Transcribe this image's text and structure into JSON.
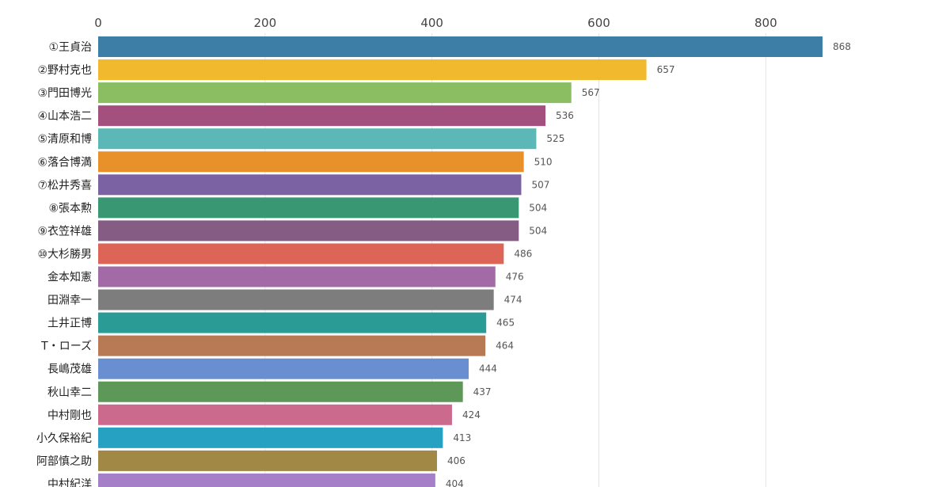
{
  "chart_data": {
    "type": "bar",
    "orientation": "horizontal",
    "title": "",
    "xlabel": "",
    "ylabel": "",
    "xlim": [
      0,
      868
    ],
    "x_ticks": [
      "0",
      "200",
      "400",
      "600",
      "800"
    ],
    "x_tick_values": [
      0,
      200,
      400,
      600,
      800
    ],
    "grid": true,
    "categories": [
      "①王貞治",
      "②野村克也",
      "③門田博光",
      "④山本浩二",
      "⑤清原和博",
      "⑥落合博満",
      "⑦松井秀喜",
      "⑧張本勲",
      "⑨衣笠祥雄",
      "⑩大杉勝男",
      "金本知憲",
      "田淵幸一",
      "土井正博",
      "T・ローズ",
      "長嶋茂雄",
      "秋山幸二",
      "中村剛也",
      "小久保裕紀",
      "阿部慎之助",
      "中村紀洋"
    ],
    "values": [
      868,
      657,
      567,
      536,
      525,
      510,
      507,
      504,
      504,
      486,
      476,
      474,
      465,
      464,
      444,
      437,
      424,
      413,
      406,
      404
    ],
    "value_labels": [
      "868",
      "657",
      "567",
      "536",
      "525",
      "510",
      "507",
      "504",
      "504",
      "486",
      "476",
      "474",
      "465",
      "464",
      "444",
      "437",
      "424",
      "413",
      "406",
      "404"
    ],
    "colors": [
      "#3d7ea6",
      "#f0b92e",
      "#8bbd63",
      "#a4507e",
      "#5bb8b6",
      "#e8902a",
      "#7a62a3",
      "#3a9773",
      "#845c84",
      "#dc6557",
      "#a36aa8",
      "#7d7d7d",
      "#2a9b95",
      "#b87a55",
      "#6a8fd0",
      "#5d9858",
      "#cc6a8e",
      "#27a1c2",
      "#a18945",
      "#a57fc8"
    ]
  }
}
